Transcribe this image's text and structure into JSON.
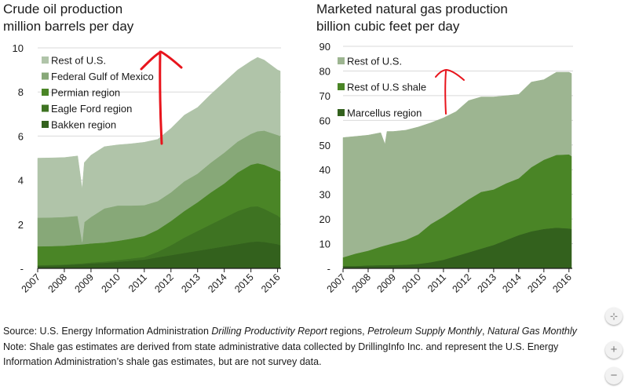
{
  "chart_data": [
    {
      "type": "area",
      "stacked": true,
      "title": "Crude oil production",
      "subtitle": "million barrels per day",
      "xlabel": "",
      "ylabel": "million barrels per day",
      "xlim": [
        2007.0,
        2016.1
      ],
      "ylim": [
        0,
        10
      ],
      "yticks": [
        0,
        2,
        4,
        6,
        8,
        10
      ],
      "ytick_labels": [
        "-",
        "2",
        "4",
        "6",
        "8",
        "10"
      ],
      "xticks": [
        2007,
        2008,
        2009,
        2010,
        2011,
        2012,
        2013,
        2014,
        2015,
        2016
      ],
      "xtick_labels": [
        "2007",
        "2008",
        "2009",
        "2010",
        "2011",
        "2012",
        "2013",
        "2014",
        "2015",
        "2016"
      ],
      "grid": true,
      "legend_position": "top-left",
      "x": [
        2007.0,
        2007.5,
        2008.0,
        2008.5,
        2008.67,
        2008.75,
        2009.0,
        2009.5,
        2010.0,
        2010.5,
        2011.0,
        2011.5,
        2012.0,
        2012.5,
        2013.0,
        2013.5,
        2014.0,
        2014.5,
        2015.0,
        2015.25,
        2015.5,
        2016.0,
        2016.1
      ],
      "series": [
        {
          "name": "Bakken region",
          "color": "#33611d",
          "values": [
            0.12,
            0.13,
            0.15,
            0.18,
            0.19,
            0.2,
            0.22,
            0.25,
            0.3,
            0.35,
            0.4,
            0.5,
            0.6,
            0.7,
            0.8,
            0.9,
            1.0,
            1.1,
            1.2,
            1.22,
            1.2,
            1.1,
            1.05
          ]
        },
        {
          "name": "Eagle Ford region",
          "color": "#3e7322",
          "values": [
            0.03,
            0.03,
            0.03,
            0.04,
            0.04,
            0.04,
            0.05,
            0.06,
            0.08,
            0.1,
            0.12,
            0.25,
            0.45,
            0.7,
            0.9,
            1.1,
            1.3,
            1.5,
            1.6,
            1.6,
            1.5,
            1.3,
            1.25
          ]
        },
        {
          "name": "Permian region",
          "color": "#4a8526",
          "values": [
            0.85,
            0.85,
            0.85,
            0.86,
            0.86,
            0.86,
            0.86,
            0.86,
            0.87,
            0.9,
            0.95,
            1.0,
            1.1,
            1.2,
            1.3,
            1.45,
            1.55,
            1.75,
            1.9,
            1.95,
            2.0,
            2.05,
            2.1
          ]
        },
        {
          "name": "Federal Gulf of Mexico",
          "color": "#87a878",
          "values": [
            1.3,
            1.3,
            1.3,
            1.3,
            0.1,
            1.0,
            1.2,
            1.55,
            1.6,
            1.5,
            1.4,
            1.3,
            1.3,
            1.35,
            1.3,
            1.35,
            1.4,
            1.4,
            1.4,
            1.45,
            1.55,
            1.6,
            1.6
          ]
        },
        {
          "name": "Rest of U.S.",
          "color": "#b0c4a9",
          "values": [
            2.7,
            2.7,
            2.7,
            2.72,
            2.4,
            2.7,
            2.8,
            2.8,
            2.75,
            2.8,
            2.85,
            2.8,
            2.9,
            3.0,
            3.0,
            3.1,
            3.2,
            3.25,
            3.3,
            3.35,
            3.2,
            2.95,
            2.95
          ]
        }
      ]
    },
    {
      "type": "area",
      "stacked": true,
      "title": "Marketed natural gas production",
      "subtitle": "billion cubic feet per day",
      "xlabel": "",
      "ylabel": "billion cubic feet per day",
      "xlim": [
        2007.0,
        2016.1
      ],
      "ylim": [
        0,
        90
      ],
      "yticks": [
        0,
        10,
        20,
        30,
        40,
        50,
        60,
        70,
        80,
        90
      ],
      "ytick_labels": [
        "-",
        "10",
        "20",
        "30",
        "40",
        "50",
        "60",
        "70",
        "80",
        "90"
      ],
      "xticks": [
        2007,
        2008,
        2009,
        2010,
        2011,
        2012,
        2013,
        2014,
        2015,
        2016
      ],
      "xtick_labels": [
        "2007",
        "2008",
        "2009",
        "2010",
        "2011",
        "2012",
        "2013",
        "2014",
        "2015",
        "2016"
      ],
      "grid": true,
      "legend_position": "top-left",
      "x": [
        2007.0,
        2007.5,
        2008.0,
        2008.5,
        2008.67,
        2008.75,
        2009.0,
        2009.5,
        2010.0,
        2010.5,
        2011.0,
        2011.5,
        2012.0,
        2012.5,
        2013.0,
        2013.5,
        2014.0,
        2014.5,
        2015.0,
        2015.5,
        2016.0,
        2016.1
      ],
      "series": [
        {
          "name": "Marcellus region",
          "color": "#33611d",
          "values": [
            1.0,
            1.0,
            1.2,
            1.3,
            1.3,
            1.3,
            1.4,
            1.5,
            1.8,
            2.5,
            3.5,
            5.0,
            6.5,
            8.0,
            9.5,
            11.5,
            13.5,
            15.0,
            16.0,
            16.5,
            16.2,
            16.0
          ]
        },
        {
          "name": "Rest of U.S shale",
          "color": "#4a8526",
          "values": [
            3.5,
            5.0,
            6.0,
            7.5,
            8.0,
            8.2,
            8.8,
            10.0,
            12.0,
            15.5,
            17.5,
            19.5,
            21.5,
            23.0,
            22.5,
            23.0,
            23.0,
            26.0,
            28.0,
            29.5,
            30.0,
            29.5
          ]
        },
        {
          "name": "Rest of U.S.",
          "color": "#9db591",
          "values": [
            48.5,
            47.5,
            46.8,
            46.2,
            41.0,
            46.0,
            45.3,
            44.5,
            43.5,
            41.0,
            40.0,
            39.0,
            40.0,
            38.5,
            37.5,
            35.5,
            34.0,
            34.5,
            32.5,
            33.5,
            33.3,
            33.5
          ]
        }
      ]
    }
  ],
  "oil_chart": {
    "title": "Crude oil production",
    "subtitle": "million barrels per day",
    "legend": [
      "Rest of U.S.",
      "Federal Gulf of Mexico",
      "Permian region",
      "Eagle Ford region",
      "Bakken region"
    ]
  },
  "gas_chart": {
    "title": "Marketed natural gas production",
    "subtitle": "billion cubic feet per day",
    "legend": [
      "Rest of U.S.",
      "Rest of U.S shale",
      "Marcellus region"
    ]
  },
  "annotation": {
    "type": "hand-drawn upward arrow",
    "color": "#e8141c"
  },
  "footer": {
    "source_prefix": "Source: U.S. Energy Information Administration ",
    "source_italic_1": "Drilling Productivity Report",
    "source_mid": " regions, ",
    "source_italic_2": "Petroleum Supply Monthly",
    "source_comma": ", ",
    "source_italic_3": "Natural Gas Monthly",
    "note": "Note: Shale gas estimates are derived from state administrative data collected by DrillingInfo Inc. and represent the U.S. Energy Information Administration’s shale gas estimates, but are not survey data."
  },
  "controls": {
    "fit_icon": "⊹",
    "zoom_in_label": "+",
    "zoom_out_label": "−"
  }
}
